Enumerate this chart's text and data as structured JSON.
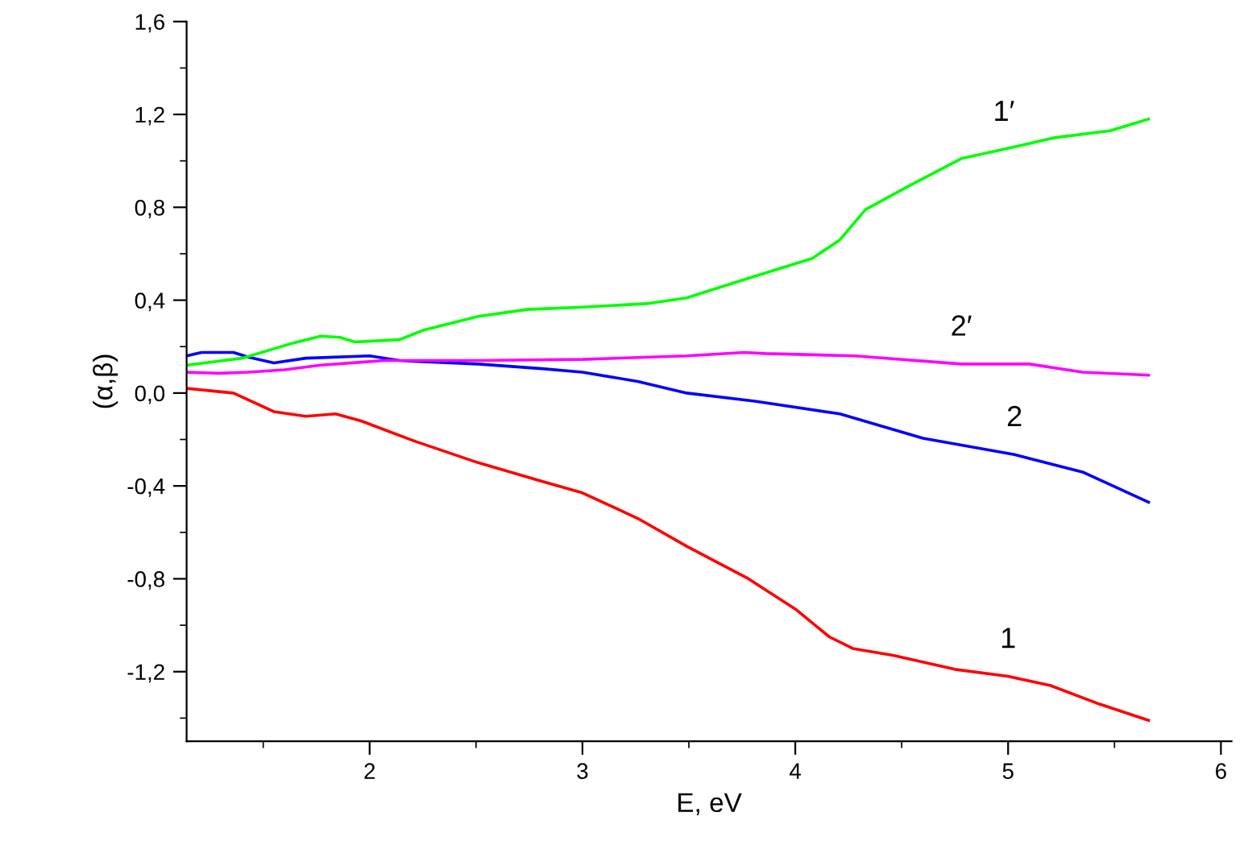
{
  "chart_data": {
    "type": "line",
    "xlabel": "E, eV",
    "ylabel": "(α,β)",
    "xlim": [
      1.14,
      6.05
    ],
    "xticks": [
      2,
      3,
      4,
      5,
      6
    ],
    "ylim": [
      -1.5,
      1.6
    ],
    "yticks": [
      {
        "value": -1.2,
        "label": "-1,2"
      },
      {
        "value": -0.8,
        "label": "-0,8"
      },
      {
        "value": -0.4,
        "label": "-0,4"
      },
      {
        "value": 0,
        "label": "0,0"
      },
      {
        "value": 0.4,
        "label": "0,4"
      },
      {
        "value": 0.8,
        "label": "0,8"
      },
      {
        "value": 1.2,
        "label": "1,2"
      },
      {
        "value": 1.6,
        "label": "1,6"
      }
    ],
    "grid": false,
    "legend": false,
    "line_style": "solid",
    "marker": "none",
    "series": [
      {
        "name": "1",
        "color": "#ff0000",
        "x": [
          1.14,
          1.36,
          1.55,
          1.7,
          1.84,
          1.96,
          2.22,
          2.51,
          2.81,
          3.0,
          3.26,
          3.49,
          3.78,
          4.0,
          4.16,
          4.27,
          4.46,
          4.75,
          5.0,
          5.2,
          5.43,
          5.66
        ],
        "values": [
          0.02,
          0.0,
          -0.08,
          -0.1,
          -0.09,
          -0.12,
          -0.21,
          -0.3,
          -0.38,
          -0.43,
          -0.54,
          -0.66,
          -0.8,
          -0.93,
          -1.05,
          -1.1,
          -1.13,
          -1.19,
          -1.22,
          -1.26,
          -1.34,
          -1.41
        ]
      },
      {
        "name": "2",
        "color": "#0000ff",
        "x": [
          1.14,
          1.21,
          1.36,
          1.43,
          1.55,
          1.7,
          2.0,
          2.14,
          2.51,
          2.81,
          3.0,
          3.26,
          3.49,
          3.81,
          4.21,
          4.6,
          5.03,
          5.35,
          5.66
        ],
        "values": [
          0.16,
          0.175,
          0.175,
          0.155,
          0.13,
          0.15,
          0.16,
          0.14,
          0.125,
          0.105,
          0.09,
          0.05,
          0.0,
          -0.035,
          -0.09,
          -0.195,
          -0.265,
          -0.34,
          -0.47
        ]
      },
      {
        "name": "1′",
        "color": "#00ff00",
        "x": [
          1.14,
          1.4,
          1.62,
          1.77,
          1.86,
          1.93,
          2.14,
          2.25,
          2.51,
          2.74,
          3.0,
          3.3,
          3.49,
          3.73,
          4.08,
          4.21,
          4.33,
          4.53,
          4.78,
          4.98,
          5.22,
          5.48,
          5.66
        ],
        "values": [
          0.12,
          0.15,
          0.21,
          0.245,
          0.24,
          0.22,
          0.23,
          0.27,
          0.33,
          0.36,
          0.37,
          0.385,
          0.41,
          0.48,
          0.58,
          0.66,
          0.79,
          0.89,
          1.01,
          1.05,
          1.1,
          1.13,
          1.18
        ]
      },
      {
        "name": "2′",
        "color": "#ff00ff",
        "x": [
          1.14,
          1.29,
          1.43,
          1.6,
          1.77,
          1.92,
          2.07,
          2.51,
          3.0,
          3.49,
          3.76,
          3.86,
          4.28,
          4.78,
          5.1,
          5.35,
          5.66
        ],
        "values": [
          0.09,
          0.085,
          0.09,
          0.1,
          0.12,
          0.13,
          0.14,
          0.14,
          0.145,
          0.16,
          0.175,
          0.17,
          0.16,
          0.125,
          0.125,
          0.09,
          0.077
        ]
      }
    ]
  }
}
